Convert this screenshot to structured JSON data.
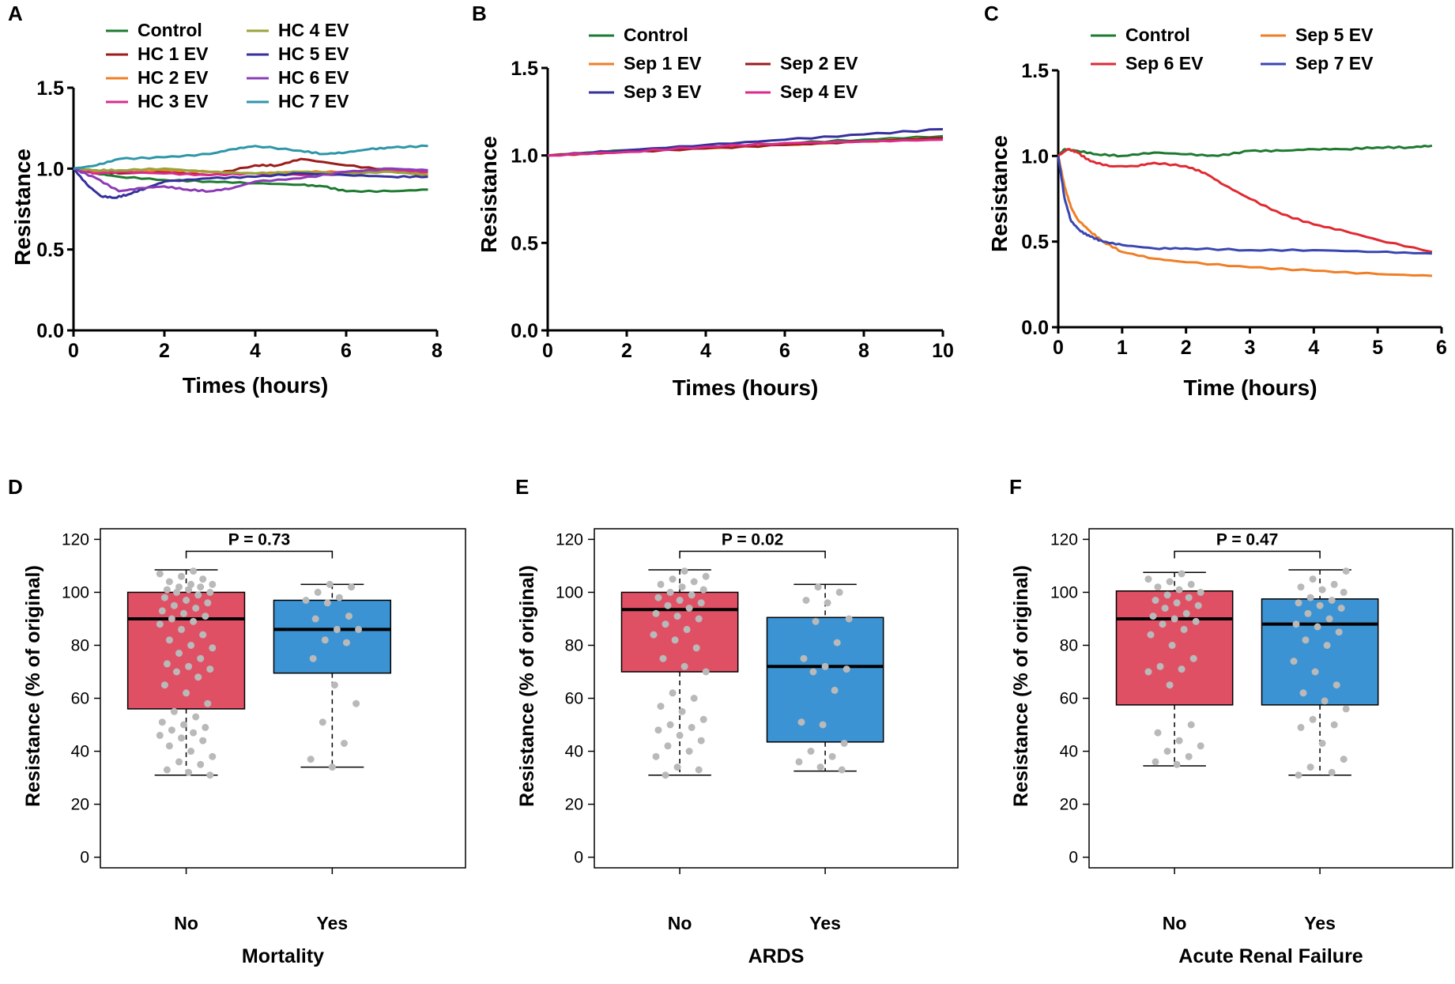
{
  "chart_data": [
    {
      "panel": "A",
      "type": "line",
      "title": "",
      "xlabel": "Times (hours)",
      "ylabel": "Resistance",
      "xlim": [
        0,
        8
      ],
      "ylim": [
        0,
        1.5
      ],
      "xticks": [
        0,
        2,
        4,
        6,
        8
      ],
      "yticks": [
        0.0,
        0.5,
        1.0,
        1.5
      ],
      "ytick_labels": [
        "0.0",
        "0.5",
        "1.0",
        "1.5"
      ],
      "legend_columns": 2,
      "series": [
        {
          "name": "Control",
          "color": "#1e7a30",
          "x": [
            0,
            0.5,
            1,
            2,
            3,
            4,
            5,
            5.5,
            6,
            7,
            7.8
          ],
          "y": [
            1.0,
            0.97,
            0.95,
            0.93,
            0.92,
            0.91,
            0.9,
            0.89,
            0.86,
            0.86,
            0.87
          ]
        },
        {
          "name": "HC 1 EV",
          "color": "#9b1c1c",
          "x": [
            0,
            0.5,
            1,
            2,
            3,
            4,
            4.5,
            5,
            6,
            7,
            7.8
          ],
          "y": [
            1.0,
            0.98,
            0.97,
            0.98,
            0.96,
            1.02,
            1.02,
            1.06,
            1.02,
            0.99,
            0.98
          ]
        },
        {
          "name": "HC 2 EV",
          "color": "#f07e26",
          "x": [
            0,
            0.5,
            1,
            2,
            3,
            4,
            5,
            6,
            7,
            7.8
          ],
          "y": [
            1.0,
            0.98,
            0.98,
            0.99,
            0.98,
            0.97,
            0.98,
            0.98,
            0.99,
            0.97
          ]
        },
        {
          "name": "HC 3 EV",
          "color": "#d92c8c",
          "x": [
            0,
            0.5,
            1,
            2,
            3,
            4,
            5,
            6,
            7,
            7.8
          ],
          "y": [
            1.0,
            0.97,
            0.98,
            0.97,
            0.96,
            0.97,
            0.96,
            0.98,
            0.99,
            0.98
          ]
        },
        {
          "name": "HC 4 EV",
          "color": "#9aa33a",
          "x": [
            0,
            0.5,
            1,
            2,
            3,
            4,
            5,
            6,
            7,
            7.8
          ],
          "y": [
            1.0,
            0.99,
            0.99,
            1.0,
            0.98,
            0.97,
            0.98,
            0.97,
            0.98,
            0.96
          ]
        },
        {
          "name": "HC 5 EV",
          "color": "#35309b",
          "x": [
            0,
            0.3,
            0.6,
            0.9,
            1.2,
            1.6,
            2,
            3,
            4,
            5,
            6,
            7,
            7.8
          ],
          "y": [
            1.0,
            0.9,
            0.83,
            0.82,
            0.84,
            0.88,
            0.92,
            0.94,
            0.95,
            0.97,
            0.96,
            0.95,
            0.95
          ]
        },
        {
          "name": "HC 6 EV",
          "color": "#8b3cb5",
          "x": [
            0,
            0.5,
            1,
            1.5,
            2,
            2.5,
            3,
            3.5,
            4,
            5,
            6,
            7,
            7.8
          ],
          "y": [
            1.0,
            0.94,
            0.86,
            0.88,
            0.89,
            0.87,
            0.86,
            0.88,
            0.92,
            0.94,
            0.98,
            1.0,
            0.99
          ]
        },
        {
          "name": "HC 7 EV",
          "color": "#2d96a8",
          "x": [
            0,
            0.5,
            1,
            2,
            3,
            3.5,
            4,
            5,
            5.5,
            6,
            6.5,
            7,
            7.8
          ],
          "y": [
            1.0,
            1.02,
            1.06,
            1.07,
            1.09,
            1.12,
            1.14,
            1.11,
            1.09,
            1.1,
            1.12,
            1.13,
            1.14
          ]
        }
      ]
    },
    {
      "panel": "B",
      "type": "line",
      "title": "",
      "xlabel": "Times (hours)",
      "ylabel": "Resistance",
      "xlim": [
        0,
        10
      ],
      "ylim": [
        0,
        1.5
      ],
      "xticks": [
        0,
        2,
        4,
        6,
        8,
        10
      ],
      "yticks": [
        0.0,
        0.5,
        1.0,
        1.5
      ],
      "ytick_labels": [
        "0.0",
        "0.5",
        "1.0",
        "1.5"
      ],
      "legend_columns": 2,
      "series": [
        {
          "name": "Control",
          "color": "#1e7a30",
          "x": [
            0,
            2,
            4,
            6,
            8,
            10
          ],
          "y": [
            1.0,
            1.03,
            1.05,
            1.07,
            1.09,
            1.11
          ]
        },
        {
          "name": "Sep 1 EV",
          "color": "#f07e26",
          "x": [
            0,
            2,
            4,
            6,
            8,
            10
          ],
          "y": [
            1.0,
            1.02,
            1.04,
            1.06,
            1.08,
            1.1
          ]
        },
        {
          "name": "Sep 2 EV",
          "color": "#9b1c1c",
          "x": [
            0,
            2,
            4,
            6,
            8,
            10
          ],
          "y": [
            1.0,
            1.02,
            1.04,
            1.06,
            1.08,
            1.1
          ]
        },
        {
          "name": "Sep 3 EV",
          "color": "#35309b",
          "x": [
            0,
            2,
            4,
            6,
            8,
            10
          ],
          "y": [
            1.0,
            1.03,
            1.06,
            1.09,
            1.12,
            1.15
          ]
        },
        {
          "name": "Sep 4 EV",
          "color": "#d92c8c",
          "x": [
            0,
            2,
            4,
            6,
            8,
            10
          ],
          "y": [
            1.0,
            1.02,
            1.05,
            1.07,
            1.08,
            1.09
          ]
        }
      ]
    },
    {
      "panel": "C",
      "type": "line",
      "title": "",
      "xlabel": "Time (hours)",
      "ylabel": "Resistance",
      "xlim": [
        0,
        6
      ],
      "ylim": [
        0,
        1.5
      ],
      "xticks": [
        0,
        1,
        2,
        3,
        4,
        5,
        6
      ],
      "yticks": [
        0.0,
        0.5,
        1.0,
        1.5
      ],
      "ytick_labels": [
        "0.0",
        "0.5",
        "1.0",
        "1.5"
      ],
      "legend_columns": 2,
      "series": [
        {
          "name": "Control",
          "color": "#1e7a30",
          "x": [
            0,
            0.1,
            0.3,
            0.6,
            1,
            1.5,
            2,
            2.5,
            3,
            3.5,
            4,
            4.5,
            5,
            5.5,
            5.85
          ],
          "y": [
            1.0,
            1.04,
            1.03,
            1.01,
            1.0,
            1.02,
            1.01,
            1.0,
            1.03,
            1.03,
            1.04,
            1.04,
            1.05,
            1.05,
            1.06
          ]
        },
        {
          "name": "Sep 5 EV",
          "color": "#f07e26",
          "x": [
            0,
            0.1,
            0.2,
            0.3,
            0.5,
            0.7,
            1,
            1.5,
            2,
            3,
            4,
            5,
            5.85
          ],
          "y": [
            1.0,
            0.82,
            0.7,
            0.63,
            0.56,
            0.5,
            0.44,
            0.4,
            0.38,
            0.35,
            0.33,
            0.31,
            0.3
          ]
        },
        {
          "name": "Sep 6 EV",
          "color": "#e02a33",
          "x": [
            0,
            0.15,
            0.3,
            0.5,
            0.8,
            1.2,
            1.5,
            2,
            2.3,
            2.6,
            3,
            3.5,
            4,
            4.5,
            5,
            5.85
          ],
          "y": [
            1.0,
            1.04,
            1.02,
            0.97,
            0.94,
            0.94,
            0.96,
            0.94,
            0.9,
            0.83,
            0.75,
            0.66,
            0.6,
            0.56,
            0.51,
            0.44
          ]
        },
        {
          "name": "Sep 7 EV",
          "color": "#3a46b0",
          "x": [
            0,
            0.1,
            0.2,
            0.35,
            0.5,
            0.7,
            1,
            1.5,
            2,
            3,
            4,
            5,
            5.85
          ],
          "y": [
            1.0,
            0.75,
            0.62,
            0.56,
            0.53,
            0.5,
            0.48,
            0.46,
            0.46,
            0.45,
            0.45,
            0.44,
            0.43
          ]
        }
      ]
    },
    {
      "panel": "D",
      "type": "box",
      "xlabel": "Mortality",
      "ylabel": "Resistance (% of original)",
      "ylim": [
        0,
        120
      ],
      "yticks": [
        0,
        20,
        40,
        60,
        80,
        100,
        120
      ],
      "categories": [
        "No",
        "Yes"
      ],
      "colors": [
        "#e05065",
        "#3b93d3"
      ],
      "pvalue": "P = 0.73",
      "boxes": [
        {
          "category": "No",
          "whisker_low": 31,
          "q1": 56,
          "median": 90,
          "q3": 100,
          "whisker_high": 108.5,
          "points": [
            31,
            32,
            33,
            35,
            36,
            38,
            40,
            42,
            44,
            45,
            46,
            47,
            48,
            49,
            50,
            51,
            53,
            55,
            58,
            62,
            65,
            68,
            70,
            71,
            72,
            73,
            75,
            77,
            79,
            80,
            82,
            84,
            86,
            88,
            89,
            90,
            91,
            92,
            93,
            94,
            95,
            96,
            97,
            98,
            99,
            100,
            100,
            101,
            101,
            102,
            102,
            103,
            103,
            104,
            105,
            106,
            107,
            108
          ]
        },
        {
          "category": "Yes",
          "whisker_low": 34,
          "q1": 69.5,
          "median": 86,
          "q3": 97,
          "whisker_high": 103,
          "points": [
            34,
            37,
            43,
            51,
            58,
            65,
            75,
            81,
            82,
            86,
            86,
            90,
            91,
            96,
            97,
            98,
            100,
            102,
            103
          ]
        }
      ]
    },
    {
      "panel": "E",
      "type": "box",
      "xlabel": "ARDS",
      "ylabel": "Resistance (% of original)",
      "ylim": [
        0,
        120
      ],
      "yticks": [
        0,
        20,
        40,
        60,
        80,
        100,
        120
      ],
      "categories": [
        "No",
        "Yes"
      ],
      "colors": [
        "#e05065",
        "#3b93d3"
      ],
      "pvalue": "P = 0.02",
      "boxes": [
        {
          "category": "No",
          "whisker_low": 31,
          "q1": 70,
          "median": 93.5,
          "q3": 100,
          "whisker_high": 108.5,
          "points": [
            31,
            33,
            34,
            38,
            40,
            42,
            44,
            46,
            48,
            49,
            50,
            52,
            55,
            57,
            60,
            62,
            70,
            72,
            75,
            79,
            82,
            84,
            86,
            88,
            90,
            91,
            92,
            94,
            95,
            96,
            97,
            98,
            99,
            100,
            101,
            102,
            103,
            104,
            105,
            106,
            108
          ]
        },
        {
          "category": "Yes",
          "whisker_low": 32.5,
          "q1": 43.5,
          "median": 72,
          "q3": 90.5,
          "whisker_high": 103,
          "points": [
            33,
            34,
            36,
            38,
            40,
            43,
            50,
            51,
            63,
            70,
            71,
            72,
            75,
            81,
            89,
            90,
            96,
            97,
            100,
            102
          ]
        }
      ]
    },
    {
      "panel": "F",
      "type": "box",
      "xlabel": "Acute Renal Failure",
      "ylabel": "Resistance (% of original)",
      "ylim": [
        0,
        120
      ],
      "yticks": [
        0,
        20,
        40,
        60,
        80,
        100,
        120
      ],
      "categories": [
        "No",
        "Yes"
      ],
      "colors": [
        "#e05065",
        "#3b93d3"
      ],
      "pvalue": "P = 0.47",
      "boxes": [
        {
          "category": "No",
          "whisker_low": 34.5,
          "q1": 57.5,
          "median": 90,
          "q3": 100.5,
          "whisker_high": 107.5,
          "points": [
            35,
            36,
            38,
            40,
            42,
            44,
            47,
            50,
            65,
            70,
            71,
            72,
            75,
            80,
            84,
            86,
            88,
            89,
            90,
            91,
            92,
            94,
            95,
            96,
            97,
            98,
            99,
            100,
            101,
            102,
            103,
            104,
            105,
            107
          ]
        },
        {
          "category": "Yes",
          "whisker_low": 31,
          "q1": 57.5,
          "median": 88,
          "q3": 97.5,
          "whisker_high": 108.5,
          "points": [
            31,
            32,
            34,
            37,
            43,
            49,
            50,
            52,
            56,
            59,
            62,
            65,
            70,
            74,
            80,
            82,
            85,
            87,
            88,
            90,
            92,
            94,
            95,
            96,
            97,
            98,
            100,
            101,
            102,
            103,
            105,
            108
          ]
        }
      ]
    }
  ]
}
